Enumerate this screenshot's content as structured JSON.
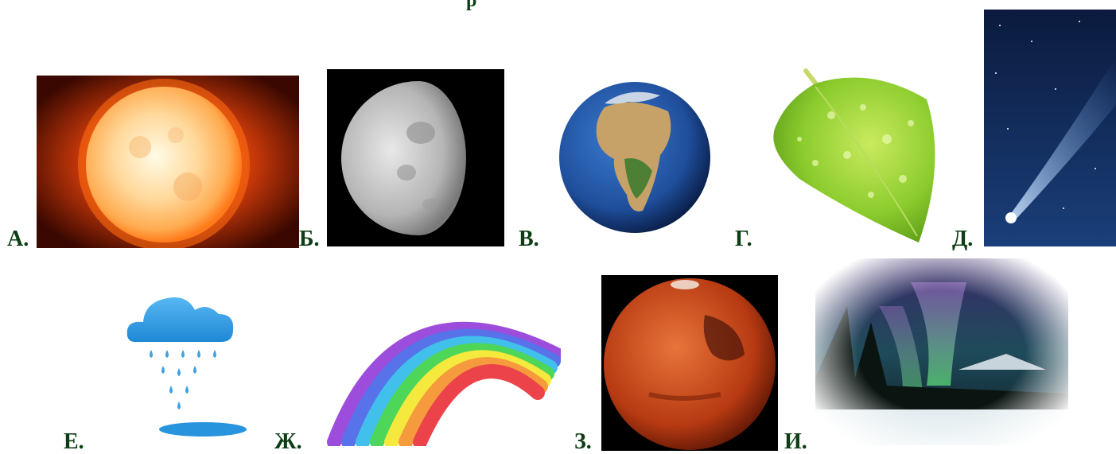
{
  "title_fragment": "р",
  "labels": {
    "a": "А.",
    "b": "Б.",
    "v": "В.",
    "g": "Г.",
    "d": "Д.",
    "e": "Е.",
    "zh": "Ж.",
    "z": "З.",
    "i": "И."
  },
  "images": [
    {
      "label": "А.",
      "icon": "sun-image"
    },
    {
      "label": "Б.",
      "icon": "moon-image"
    },
    {
      "label": "В.",
      "icon": "earth-image"
    },
    {
      "label": "Г.",
      "icon": "leaf-image"
    },
    {
      "label": "Д.",
      "icon": "comet-image"
    },
    {
      "label": "Е.",
      "icon": "rain-cloud-image"
    },
    {
      "label": "Ж.",
      "icon": "rainbow-image"
    },
    {
      "label": "З.",
      "icon": "mars-image"
    },
    {
      "label": "И.",
      "icon": "aurora-image"
    }
  ],
  "colors": {
    "label_text": "#0c3d14",
    "background": "#ffffff"
  }
}
